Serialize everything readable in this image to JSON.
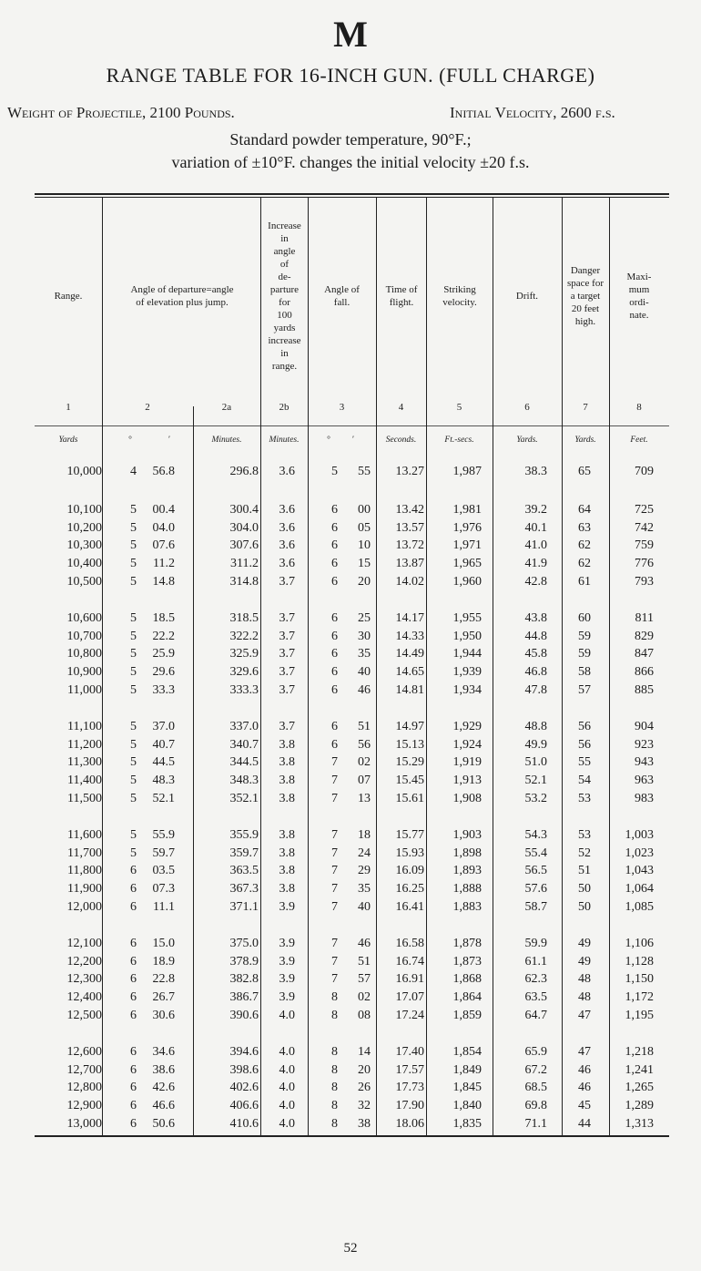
{
  "header": {
    "letter": "M",
    "title": "RANGE TABLE FOR 16-INCH GUN. (FULL CHARGE)",
    "weight": "Weight of Projectile, 2100 Pounds.",
    "velocity": "Initial Velocity, 2600 f.s.",
    "standard": "Standard powder temperature, 90°F.;",
    "variation": "variation of ±10°F. changes the initial velocity ±20 f.s."
  },
  "columns": {
    "range": {
      "label": "Range.",
      "number": "1",
      "unit": "Yards"
    },
    "departure": {
      "label": "Angle of departure=angle of elevation plus jump.",
      "number": "2",
      "unit_deg": "°",
      "unit_min": "′"
    },
    "departure_minutes": {
      "number": "2a",
      "unit": "Minutes."
    },
    "increase": {
      "label": "Increase in angle of de- parture for 100 yards increase in range.",
      "number": "2b",
      "unit": "Minutes."
    },
    "fall": {
      "label": "Angle of fall.",
      "number": "3",
      "unit_deg": "°",
      "unit_min": "′"
    },
    "time": {
      "label": "Time of flight.",
      "number": "4",
      "unit": "Seconds."
    },
    "velocity": {
      "label": "Striking velocity.",
      "number": "5",
      "unit": "Ft.-secs."
    },
    "drift": {
      "label": "Drift.",
      "number": "6",
      "unit": "Yards."
    },
    "danger": {
      "label": "Danger space for a target 20 feet high.",
      "number": "7",
      "unit": "Yards."
    },
    "ordinate": {
      "label": "Maxi- mum ordi- nate.",
      "number": "8",
      "unit": "Feet."
    }
  },
  "groups": [
    [
      [
        "10,000",
        "4",
        "56.8",
        "296.8",
        "3.6",
        "5",
        "55",
        "13.27",
        "1,987",
        "38.3",
        "65",
        "709"
      ]
    ],
    [
      [
        "10,100",
        "5",
        "00.4",
        "300.4",
        "3.6",
        "6",
        "00",
        "13.42",
        "1,981",
        "39.2",
        "64",
        "725"
      ],
      [
        "10,200",
        "5",
        "04.0",
        "304.0",
        "3.6",
        "6",
        "05",
        "13.57",
        "1,976",
        "40.1",
        "63",
        "742"
      ],
      [
        "10,300",
        "5",
        "07.6",
        "307.6",
        "3.6",
        "6",
        "10",
        "13.72",
        "1,971",
        "41.0",
        "62",
        "759"
      ],
      [
        "10,400",
        "5",
        "11.2",
        "311.2",
        "3.6",
        "6",
        "15",
        "13.87",
        "1,965",
        "41.9",
        "62",
        "776"
      ],
      [
        "10,500",
        "5",
        "14.8",
        "314.8",
        "3.7",
        "6",
        "20",
        "14.02",
        "1,960",
        "42.8",
        "61",
        "793"
      ]
    ],
    [
      [
        "10,600",
        "5",
        "18.5",
        "318.5",
        "3.7",
        "6",
        "25",
        "14.17",
        "1,955",
        "43.8",
        "60",
        "811"
      ],
      [
        "10,700",
        "5",
        "22.2",
        "322.2",
        "3.7",
        "6",
        "30",
        "14.33",
        "1,950",
        "44.8",
        "59",
        "829"
      ],
      [
        "10,800",
        "5",
        "25.9",
        "325.9",
        "3.7",
        "6",
        "35",
        "14.49",
        "1,944",
        "45.8",
        "59",
        "847"
      ],
      [
        "10,900",
        "5",
        "29.6",
        "329.6",
        "3.7",
        "6",
        "40",
        "14.65",
        "1,939",
        "46.8",
        "58",
        "866"
      ],
      [
        "11,000",
        "5",
        "33.3",
        "333.3",
        "3.7",
        "6",
        "46",
        "14.81",
        "1,934",
        "47.8",
        "57",
        "885"
      ]
    ],
    [
      [
        "11,100",
        "5",
        "37.0",
        "337.0",
        "3.7",
        "6",
        "51",
        "14.97",
        "1,929",
        "48.8",
        "56",
        "904"
      ],
      [
        "11,200",
        "5",
        "40.7",
        "340.7",
        "3.8",
        "6",
        "56",
        "15.13",
        "1,924",
        "49.9",
        "56",
        "923"
      ],
      [
        "11,300",
        "5",
        "44.5",
        "344.5",
        "3.8",
        "7",
        "02",
        "15.29",
        "1,919",
        "51.0",
        "55",
        "943"
      ],
      [
        "11,400",
        "5",
        "48.3",
        "348.3",
        "3.8",
        "7",
        "07",
        "15.45",
        "1,913",
        "52.1",
        "54",
        "963"
      ],
      [
        "11,500",
        "5",
        "52.1",
        "352.1",
        "3.8",
        "7",
        "13",
        "15.61",
        "1,908",
        "53.2",
        "53",
        "983"
      ]
    ],
    [
      [
        "11,600",
        "5",
        "55.9",
        "355.9",
        "3.8",
        "7",
        "18",
        "15.77",
        "1,903",
        "54.3",
        "53",
        "1,003"
      ],
      [
        "11,700",
        "5",
        "59.7",
        "359.7",
        "3.8",
        "7",
        "24",
        "15.93",
        "1,898",
        "55.4",
        "52",
        "1,023"
      ],
      [
        "11,800",
        "6",
        "03.5",
        "363.5",
        "3.8",
        "7",
        "29",
        "16.09",
        "1,893",
        "56.5",
        "51",
        "1,043"
      ],
      [
        "11,900",
        "6",
        "07.3",
        "367.3",
        "3.8",
        "7",
        "35",
        "16.25",
        "1,888",
        "57.6",
        "50",
        "1,064"
      ],
      [
        "12,000",
        "6",
        "11.1",
        "371.1",
        "3.9",
        "7",
        "40",
        "16.41",
        "1,883",
        "58.7",
        "50",
        "1,085"
      ]
    ],
    [
      [
        "12,100",
        "6",
        "15.0",
        "375.0",
        "3.9",
        "7",
        "46",
        "16.58",
        "1,878",
        "59.9",
        "49",
        "1,106"
      ],
      [
        "12,200",
        "6",
        "18.9",
        "378.9",
        "3.9",
        "7",
        "51",
        "16.74",
        "1,873",
        "61.1",
        "49",
        "1,128"
      ],
      [
        "12,300",
        "6",
        "22.8",
        "382.8",
        "3.9",
        "7",
        "57",
        "16.91",
        "1,868",
        "62.3",
        "48",
        "1,150"
      ],
      [
        "12,400",
        "6",
        "26.7",
        "386.7",
        "3.9",
        "8",
        "02",
        "17.07",
        "1,864",
        "63.5",
        "48",
        "1,172"
      ],
      [
        "12,500",
        "6",
        "30.6",
        "390.6",
        "4.0",
        "8",
        "08",
        "17.24",
        "1,859",
        "64.7",
        "47",
        "1,195"
      ]
    ],
    [
      [
        "12,600",
        "6",
        "34.6",
        "394.6",
        "4.0",
        "8",
        "14",
        "17.40",
        "1,854",
        "65.9",
        "47",
        "1,218"
      ],
      [
        "12,700",
        "6",
        "38.6",
        "398.6",
        "4.0",
        "8",
        "20",
        "17.57",
        "1,849",
        "67.2",
        "46",
        "1,241"
      ],
      [
        "12,800",
        "6",
        "42.6",
        "402.6",
        "4.0",
        "8",
        "26",
        "17.73",
        "1,845",
        "68.5",
        "46",
        "1,265"
      ],
      [
        "12,900",
        "6",
        "46.6",
        "406.6",
        "4.0",
        "8",
        "32",
        "17.90",
        "1,840",
        "69.8",
        "45",
        "1,289"
      ],
      [
        "13,000",
        "6",
        "50.6",
        "410.6",
        "4.0",
        "8",
        "38",
        "18.06",
        "1,835",
        "71.1",
        "44",
        "1,313"
      ]
    ]
  ],
  "footer": {
    "page_number": "52"
  }
}
